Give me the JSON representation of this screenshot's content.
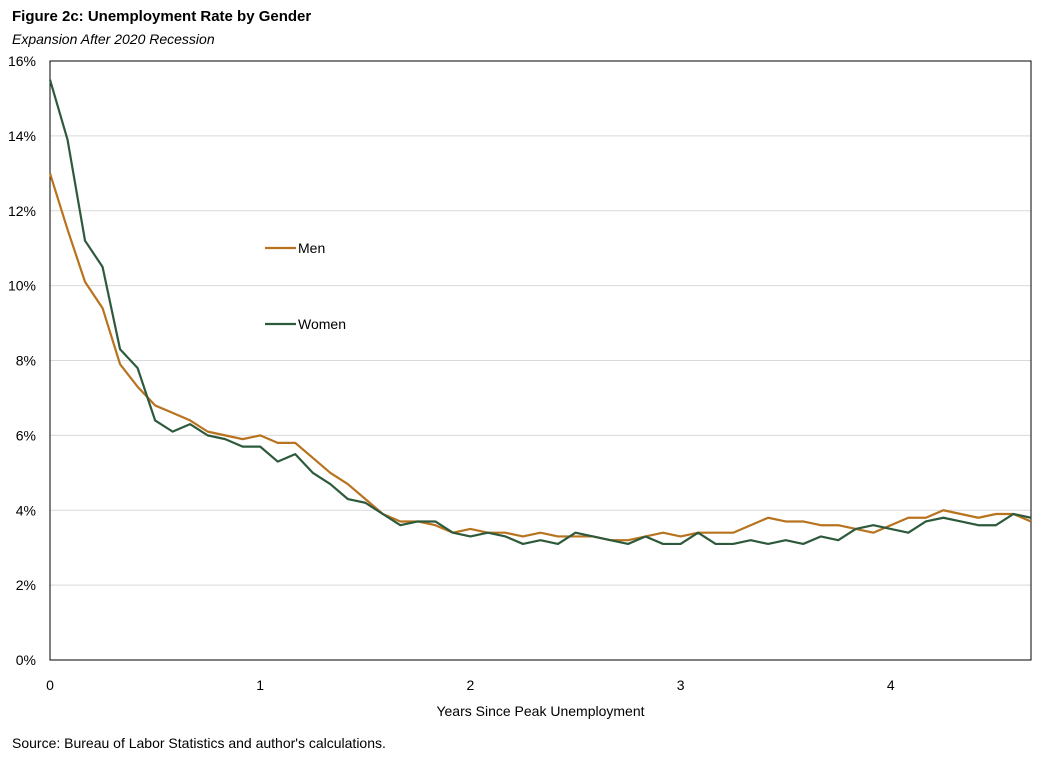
{
  "chart_data": {
    "type": "line",
    "title": "Figure 2c: Unemployment Rate by Gender",
    "subtitle": "Expansion After 2020 Recession",
    "xlabel": "Years Since Peak Unemployment",
    "ylabel": "",
    "source": "Source: Bureau of Labor Statistics and author's calculations.",
    "xlim": [
      0,
      4.667
    ],
    "ylim": [
      0,
      16
    ],
    "x_ticks": [
      0,
      1,
      2,
      3,
      4
    ],
    "x_tick_labels": [
      "0",
      "1",
      "2",
      "3",
      "4"
    ],
    "y_ticks": [
      0,
      2,
      4,
      6,
      8,
      10,
      12,
      14,
      16
    ],
    "y_tick_labels": [
      "0%",
      "2%",
      "4%",
      "6%",
      "8%",
      "10%",
      "12%",
      "14%",
      "16%"
    ],
    "grid": "horizontal",
    "legend_placement": "upper-left-center",
    "x_step_months": 1,
    "series": [
      {
        "name": "Men",
        "color": "#b8731f",
        "values": [
          13.0,
          11.5,
          10.1,
          9.4,
          7.9,
          7.3,
          6.8,
          6.6,
          6.4,
          6.1,
          6.0,
          5.9,
          6.0,
          5.8,
          5.8,
          5.4,
          5.0,
          4.7,
          4.3,
          3.9,
          3.7,
          3.7,
          3.6,
          3.4,
          3.5,
          3.4,
          3.4,
          3.3,
          3.4,
          3.3,
          3.3,
          3.3,
          3.2,
          3.2,
          3.3,
          3.4,
          3.3,
          3.4,
          3.4,
          3.4,
          3.6,
          3.8,
          3.7,
          3.7,
          3.6,
          3.6,
          3.5,
          3.4,
          3.6,
          3.8,
          3.8,
          4.0,
          3.9,
          3.8,
          3.9,
          3.9,
          3.7
        ]
      },
      {
        "name": "Women",
        "color": "#2e5a3c",
        "values": [
          15.5,
          13.9,
          11.2,
          10.5,
          8.3,
          7.8,
          6.4,
          6.1,
          6.3,
          6.0,
          5.9,
          5.7,
          5.7,
          5.3,
          5.5,
          5.0,
          4.7,
          4.3,
          4.2,
          3.9,
          3.6,
          3.7,
          3.7,
          3.4,
          3.3,
          3.4,
          3.3,
          3.1,
          3.2,
          3.1,
          3.4,
          3.3,
          3.2,
          3.1,
          3.3,
          3.1,
          3.1,
          3.4,
          3.1,
          3.1,
          3.2,
          3.1,
          3.2,
          3.1,
          3.3,
          3.2,
          3.5,
          3.6,
          3.5,
          3.4,
          3.7,
          3.8,
          3.7,
          3.6,
          3.6,
          3.9,
          3.8
        ]
      }
    ]
  }
}
